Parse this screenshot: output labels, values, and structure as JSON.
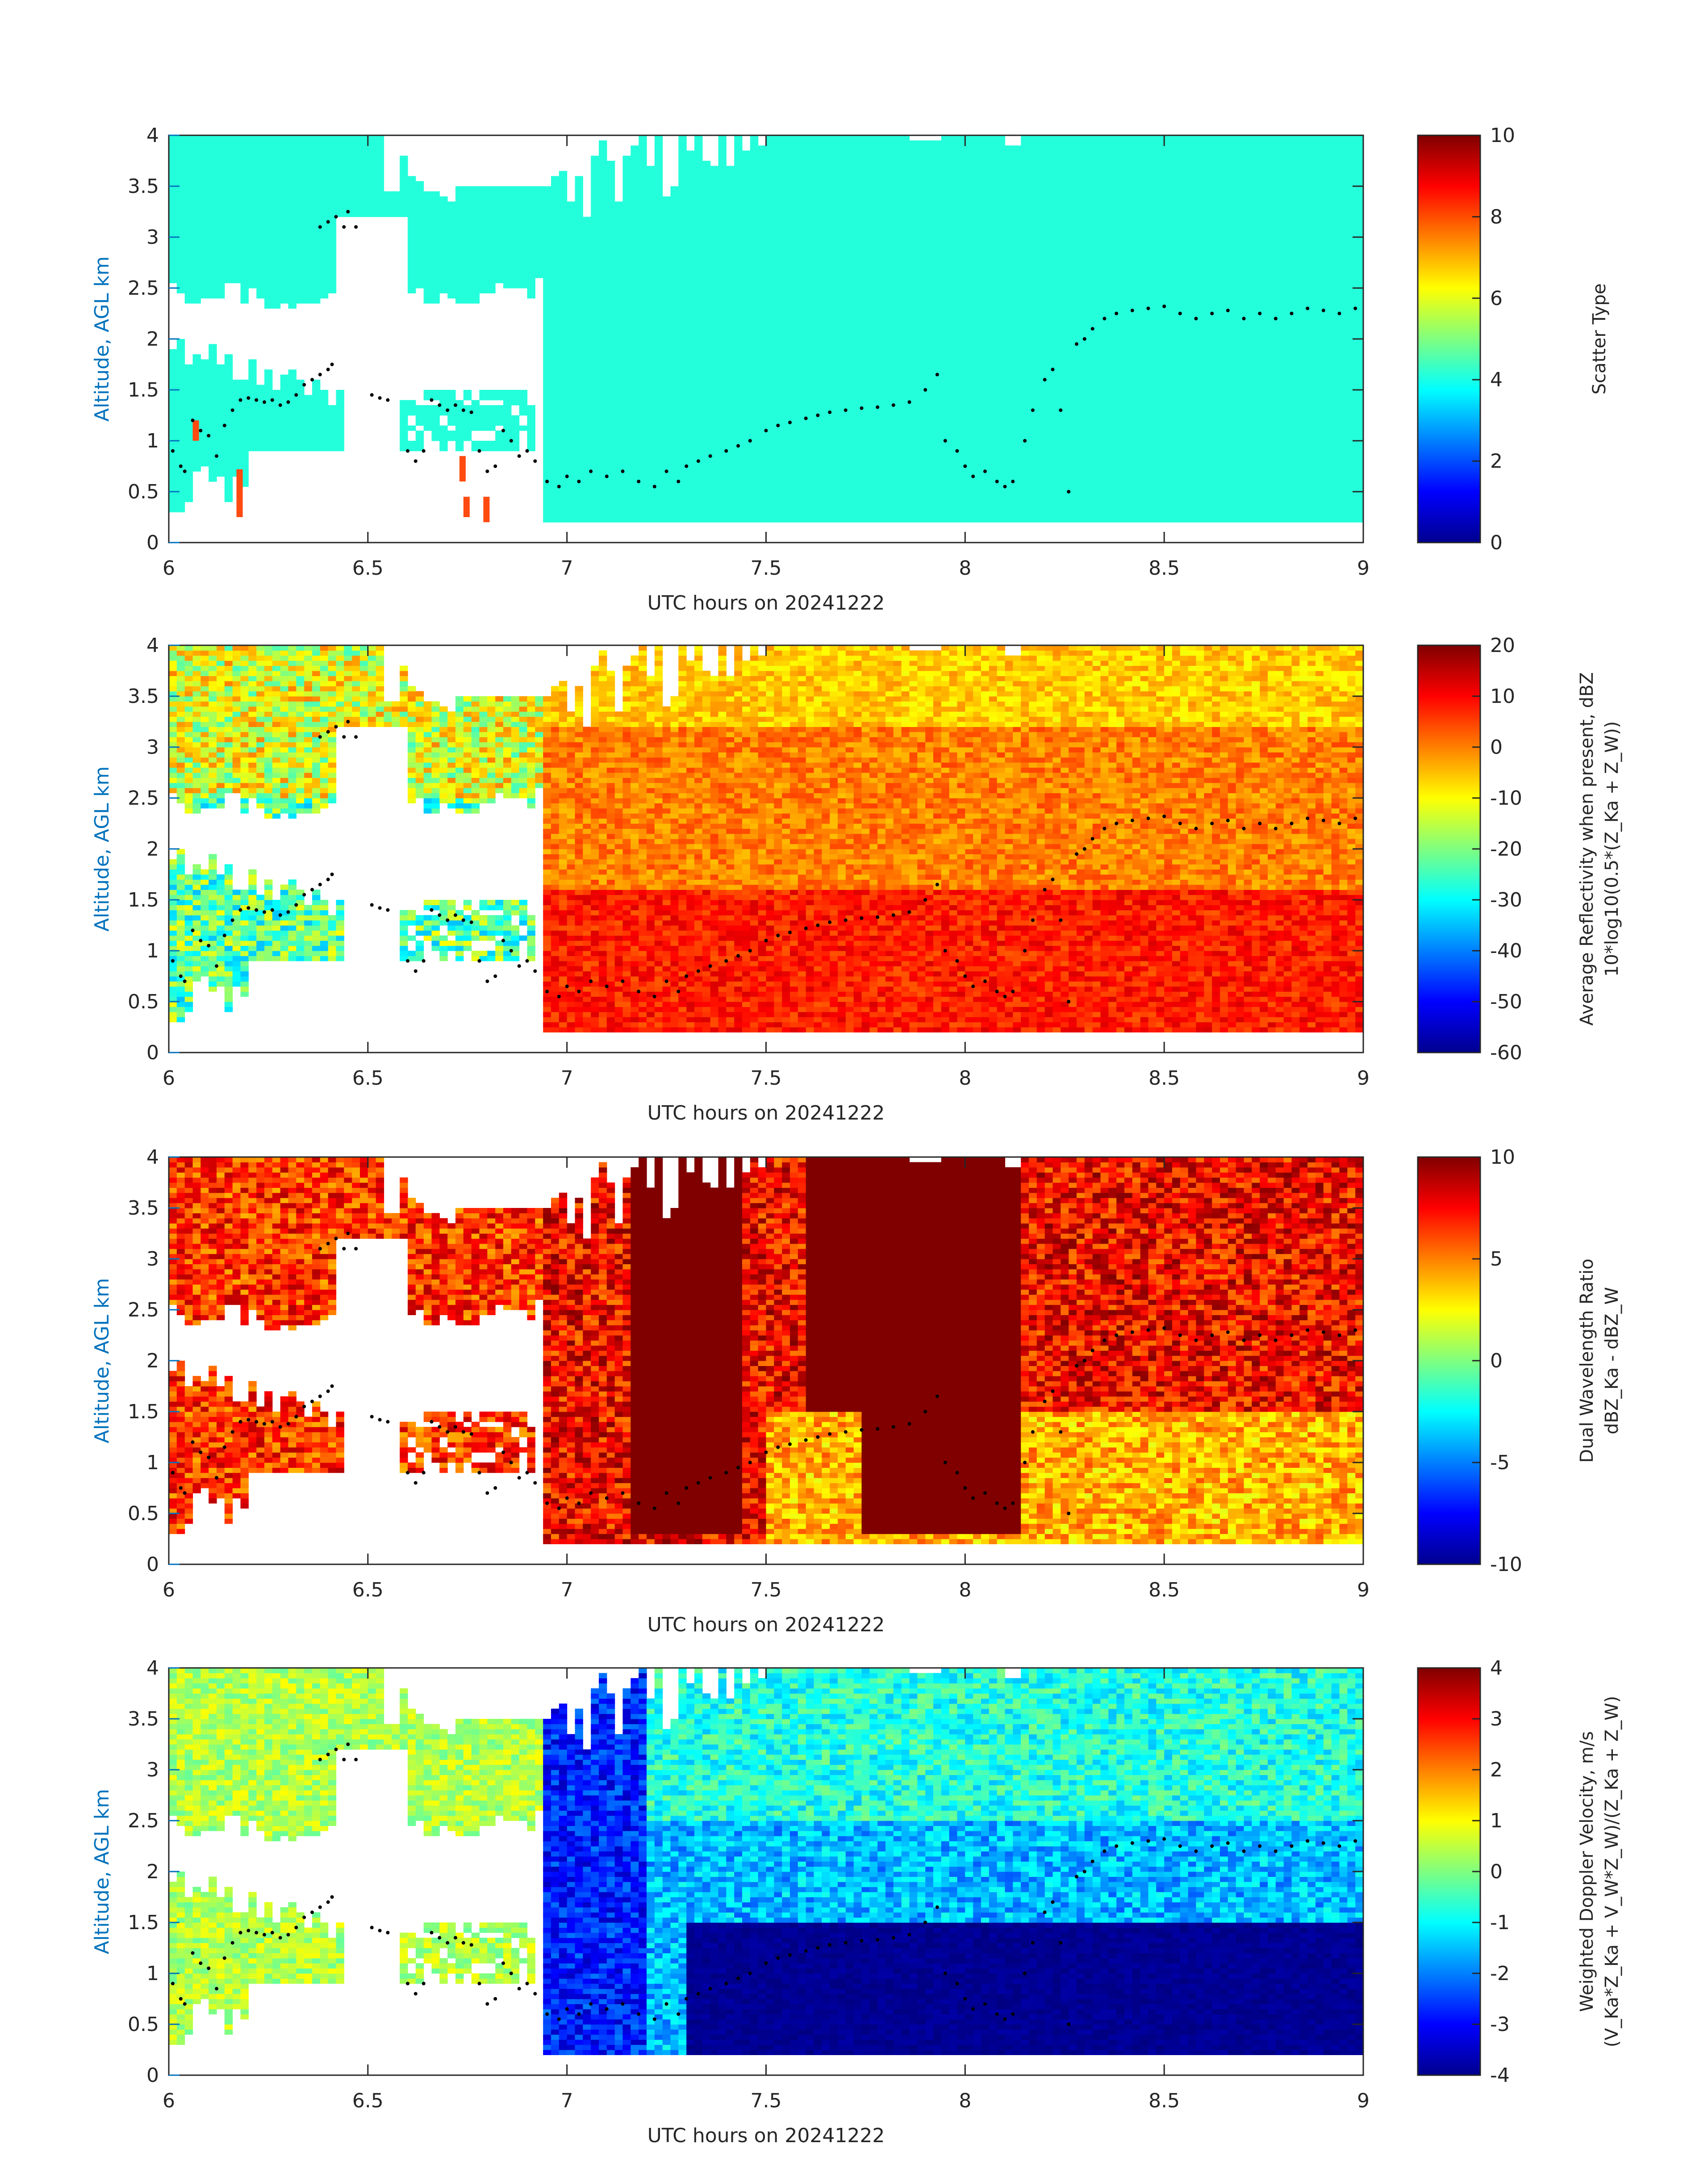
{
  "figure": {
    "accent_color": "#0072BD",
    "dot_color": "#000000"
  },
  "chart_data": [
    {
      "type": "heatmap",
      "panel": "scatter-type",
      "xlabel": "UTC hours on 20241222",
      "ylabel": "Altitude, AGL km",
      "xlim": [
        6,
        9
      ],
      "ylim": [
        0,
        4
      ],
      "xticks": [
        "6",
        "6.5",
        "7",
        "7.5",
        "8",
        "8.5",
        "9"
      ],
      "yticks": [
        "0",
        "0.5",
        "1",
        "1.5",
        "2",
        "2.5",
        "3",
        "3.5",
        "4"
      ],
      "colorbar": {
        "label_lines": [
          "Scatter Type"
        ],
        "clim": [
          0,
          10
        ],
        "ticks": [
          "0",
          "2",
          "4",
          "6",
          "8",
          "10"
        ]
      },
      "dominant_value": 4.1,
      "colormap": "jet"
    },
    {
      "type": "heatmap",
      "panel": "reflectivity",
      "xlabel": "UTC hours on 20241222",
      "ylabel": "Altitude, AGL km",
      "xlim": [
        6,
        9
      ],
      "ylim": [
        0,
        4
      ],
      "xticks": [
        "6",
        "6.5",
        "7",
        "7.5",
        "8",
        "8.5",
        "9"
      ],
      "yticks": [
        "0",
        "0.5",
        "1",
        "1.5",
        "2",
        "2.5",
        "3",
        "3.5",
        "4"
      ],
      "colorbar": {
        "label_lines": [
          "Average Reflectivity when present, dBZ",
          "10*log10(0.5*(Z_Ka + Z_W))"
        ],
        "clim": [
          -60,
          20
        ],
        "ticks": [
          "-60",
          "-50",
          "-40",
          "-30",
          "-20",
          "-10",
          "0",
          "10",
          "20"
        ]
      },
      "colormap": "jet"
    },
    {
      "type": "heatmap",
      "panel": "dual-wavelength-ratio",
      "xlabel": "UTC hours on 20241222",
      "ylabel": "Altitude, AGL km",
      "xlim": [
        6,
        9
      ],
      "ylim": [
        0,
        4
      ],
      "xticks": [
        "6",
        "6.5",
        "7",
        "7.5",
        "8",
        "8.5",
        "9"
      ],
      "yticks": [
        "0",
        "0.5",
        "1",
        "1.5",
        "2",
        "2.5",
        "3",
        "3.5",
        "4"
      ],
      "colorbar": {
        "label_lines": [
          "Dual Wavelength Ratio",
          "dBZ_Ka - dBZ_W"
        ],
        "clim": [
          -10,
          10
        ],
        "ticks": [
          "-10",
          "-5",
          "0",
          "5",
          "10"
        ]
      },
      "colormap": "jet"
    },
    {
      "type": "heatmap",
      "panel": "doppler-velocity",
      "xlabel": "UTC hours on 20241222",
      "ylabel": "Altitude, AGL km",
      "xlim": [
        6,
        9
      ],
      "ylim": [
        0,
        4
      ],
      "xticks": [
        "6",
        "6.5",
        "7",
        "7.5",
        "8",
        "8.5",
        "9"
      ],
      "yticks": [
        "0",
        "0.5",
        "1",
        "1.5",
        "2",
        "2.5",
        "3",
        "3.5",
        "4"
      ],
      "colorbar": {
        "label_lines": [
          "Weighted Doppler Velocity, m/s",
          "(V_Ka*Z_Ka + V_W*Z_W)/(Z_Ka + Z_W)"
        ],
        "clim": [
          -4,
          4
        ],
        "ticks": [
          "-4",
          "-3",
          "-2",
          "-1",
          "0",
          "1",
          "2",
          "3",
          "4"
        ]
      },
      "colormap": "jet"
    }
  ],
  "cloud_top_dots": [
    [
      6.01,
      0.9
    ],
    [
      6.03,
      0.75
    ],
    [
      6.04,
      0.7
    ],
    [
      6.06,
      1.2
    ],
    [
      6.08,
      1.1
    ],
    [
      6.1,
      1.05
    ],
    [
      6.12,
      0.85
    ],
    [
      6.14,
      1.15
    ],
    [
      6.16,
      1.3
    ],
    [
      6.18,
      1.4
    ],
    [
      6.2,
      1.42
    ],
    [
      6.22,
      1.4
    ],
    [
      6.24,
      1.38
    ],
    [
      6.26,
      1.4
    ],
    [
      6.28,
      1.35
    ],
    [
      6.3,
      1.38
    ],
    [
      6.32,
      1.45
    ],
    [
      6.34,
      1.55
    ],
    [
      6.36,
      1.6
    ],
    [
      6.38,
      1.65
    ],
    [
      6.4,
      1.7
    ],
    [
      6.41,
      1.75
    ],
    [
      6.38,
      3.1
    ],
    [
      6.4,
      3.15
    ],
    [
      6.42,
      3.2
    ],
    [
      6.44,
      3.1
    ],
    [
      6.45,
      3.25
    ],
    [
      6.47,
      3.1
    ],
    [
      6.51,
      1.45
    ],
    [
      6.53,
      1.42
    ],
    [
      6.55,
      1.4
    ],
    [
      6.6,
      0.9
    ],
    [
      6.62,
      0.8
    ],
    [
      6.64,
      0.9
    ],
    [
      6.66,
      1.4
    ],
    [
      6.68,
      1.35
    ],
    [
      6.7,
      1.3
    ],
    [
      6.72,
      1.35
    ],
    [
      6.74,
      1.3
    ],
    [
      6.76,
      1.28
    ],
    [
      6.78,
      0.9
    ],
    [
      6.8,
      0.7
    ],
    [
      6.82,
      0.75
    ],
    [
      6.84,
      1.1
    ],
    [
      6.86,
      1.0
    ],
    [
      6.88,
      0.85
    ],
    [
      6.9,
      0.9
    ],
    [
      6.92,
      0.8
    ],
    [
      6.95,
      0.6
    ],
    [
      6.98,
      0.55
    ],
    [
      7.0,
      0.65
    ],
    [
      7.03,
      0.6
    ],
    [
      7.06,
      0.7
    ],
    [
      7.1,
      0.65
    ],
    [
      7.14,
      0.7
    ],
    [
      7.18,
      0.6
    ],
    [
      7.22,
      0.55
    ],
    [
      7.25,
      0.7
    ],
    [
      7.28,
      0.6
    ],
    [
      7.3,
      0.75
    ],
    [
      7.33,
      0.8
    ],
    [
      7.36,
      0.85
    ],
    [
      7.4,
      0.9
    ],
    [
      7.43,
      0.95
    ],
    [
      7.46,
      1.0
    ],
    [
      7.5,
      1.1
    ],
    [
      7.53,
      1.15
    ],
    [
      7.56,
      1.18
    ],
    [
      7.6,
      1.22
    ],
    [
      7.63,
      1.25
    ],
    [
      7.66,
      1.28
    ],
    [
      7.7,
      1.3
    ],
    [
      7.74,
      1.32
    ],
    [
      7.78,
      1.33
    ],
    [
      7.82,
      1.35
    ],
    [
      7.86,
      1.38
    ],
    [
      7.9,
      1.5
    ],
    [
      7.93,
      1.65
    ],
    [
      7.95,
      1.0
    ],
    [
      7.98,
      0.9
    ],
    [
      8.0,
      0.75
    ],
    [
      8.02,
      0.65
    ],
    [
      8.05,
      0.7
    ],
    [
      8.08,
      0.6
    ],
    [
      8.1,
      0.55
    ],
    [
      8.12,
      0.6
    ],
    [
      8.15,
      1.0
    ],
    [
      8.17,
      1.3
    ],
    [
      8.2,
      1.6
    ],
    [
      8.22,
      1.7
    ],
    [
      8.24,
      1.3
    ],
    [
      8.26,
      0.5
    ],
    [
      8.28,
      1.95
    ],
    [
      8.3,
      2.0
    ],
    [
      8.32,
      2.1
    ],
    [
      8.35,
      2.2
    ],
    [
      8.38,
      2.25
    ],
    [
      8.42,
      2.28
    ],
    [
      8.46,
      2.3
    ],
    [
      8.5,
      2.32
    ],
    [
      8.54,
      2.25
    ],
    [
      8.58,
      2.2
    ],
    [
      8.62,
      2.25
    ],
    [
      8.66,
      2.28
    ],
    [
      8.7,
      2.2
    ],
    [
      8.74,
      2.25
    ],
    [
      8.78,
      2.2
    ],
    [
      8.82,
      2.25
    ],
    [
      8.86,
      2.3
    ],
    [
      8.9,
      2.28
    ],
    [
      8.94,
      2.25
    ],
    [
      8.98,
      2.3
    ]
  ]
}
